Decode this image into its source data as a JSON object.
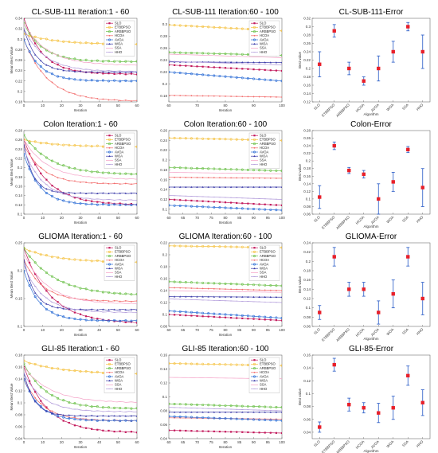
{
  "series_styles": [
    {
      "name": "SLO",
      "color": "#c2185b",
      "marker": "square"
    },
    {
      "name": "ETBBPSO",
      "color": "#f5c242",
      "marker": "circle"
    },
    {
      "name": "ARBBPSO",
      "color": "#6cc04a",
      "marker": "circle"
    },
    {
      "name": "HCOA",
      "color": "#f26d6d",
      "marker": "dot"
    },
    {
      "name": "AVOA",
      "color": "#2f6fd6",
      "marker": "circle"
    },
    {
      "name": "WOA",
      "color": "#3a3aa8",
      "marker": "triangle"
    },
    {
      "name": "SSA",
      "color": "#f4a0c6",
      "marker": "none"
    },
    {
      "name": "HHO",
      "color": "#b39ddb",
      "marker": "dash"
    }
  ],
  "chart_data": [
    {
      "type": "line",
      "title": "CL-SUB-111  Iteration:1 - 60",
      "xlabel": "Iteration",
      "ylabel": "Mean Best Value",
      "xlim": [
        0,
        60
      ],
      "ylim": [
        0.18,
        0.34
      ],
      "xticks": [
        0,
        10,
        20,
        30,
        40,
        50,
        60
      ],
      "yticks": [
        0.18,
        0.2,
        0.22,
        0.24,
        0.26,
        0.28,
        0.3,
        0.32,
        0.34
      ],
      "legend": "top-right",
      "series": [
        {
          "name": "SLO",
          "start": 0.34,
          "end": 0.233,
          "rate": 0.1
        },
        {
          "name": "ETBBPSO",
          "start": 0.31,
          "end": 0.29,
          "rate": 0.06
        },
        {
          "name": "ARBBPSO",
          "start": 0.33,
          "end": 0.257,
          "rate": 0.1
        },
        {
          "name": "HCOA",
          "start": 0.3,
          "end": 0.181,
          "rate": 0.08
        },
        {
          "name": "AVOA",
          "start": 0.3,
          "end": 0.22,
          "rate": 0.12
        },
        {
          "name": "WOA",
          "start": 0.32,
          "end": 0.237,
          "rate": 0.15
        },
        {
          "name": "SSA",
          "start": 0.33,
          "end": 0.25,
          "rate": 0.08
        },
        {
          "name": "HHO",
          "start": 0.32,
          "end": 0.238,
          "rate": 0.09
        }
      ]
    },
    {
      "type": "line",
      "title": "CL-SUB-111  Iteration:60 - 100",
      "xlabel": "Iteration",
      "ylabel": "",
      "xlim": [
        60,
        100
      ],
      "ylim": [
        0.17,
        0.31
      ],
      "xticks": [
        60,
        70,
        80,
        90,
        100
      ],
      "yticks": [
        0.18,
        0.2,
        0.22,
        0.24,
        0.26,
        0.28,
        0.3
      ],
      "legend": "top-right",
      "series": [
        {
          "name": "SLO",
          "start": 0.232,
          "end": 0.222
        },
        {
          "name": "ETBBPSO",
          "start": 0.299,
          "end": 0.289
        },
        {
          "name": "ARBBPSO",
          "start": 0.253,
          "end": 0.248
        },
        {
          "name": "HCOA",
          "start": 0.181,
          "end": 0.178
        },
        {
          "name": "AVOA",
          "start": 0.22,
          "end": 0.205
        },
        {
          "name": "WOA",
          "start": 0.237,
          "end": 0.236
        },
        {
          "name": "SSA",
          "start": 0.25,
          "end": 0.244
        },
        {
          "name": "HHO",
          "start": 0.238,
          "end": 0.232
        }
      ]
    },
    {
      "type": "errorbar",
      "title": "CL-SUB-111-Error",
      "xlabel": "Algorithm",
      "ylabel": "Best value",
      "ylim": [
        0.12,
        0.32
      ],
      "yticks": [
        0.12,
        0.14,
        0.16,
        0.18,
        0.2,
        0.22,
        0.24,
        0.26,
        0.28,
        0.3,
        0.32
      ],
      "categories": [
        "SLO",
        "ETBBPSO",
        "ARBBPSO",
        "HCOA",
        "AVOA",
        "WOA",
        "SSA",
        "HHO"
      ],
      "values": [
        0.21,
        0.29,
        0.2,
        0.17,
        0.2,
        0.24,
        0.3,
        0.24
      ],
      "errors": [
        0.03,
        0.015,
        0.015,
        0.01,
        0.03,
        0.025,
        0.01,
        0.04
      ]
    },
    {
      "type": "line",
      "title": "Colon  Iteration:1 - 60",
      "xlabel": "Iteration",
      "ylabel": "Mean Best Value",
      "xlim": [
        0,
        60
      ],
      "ylim": [
        0.1,
        0.28
      ],
      "xticks": [
        0,
        10,
        20,
        30,
        40,
        50,
        60
      ],
      "yticks": [
        0.1,
        0.12,
        0.14,
        0.16,
        0.18,
        0.2,
        0.22,
        0.24,
        0.26,
        0.28
      ],
      "legend": "top-right",
      "series": [
        {
          "name": "SLO",
          "start": 0.26,
          "end": 0.12,
          "rate": 0.08
        },
        {
          "name": "ETBBPSO",
          "start": 0.26,
          "end": 0.245,
          "rate": 0.06
        },
        {
          "name": "ARBBPSO",
          "start": 0.27,
          "end": 0.185,
          "rate": 0.07
        },
        {
          "name": "HCOA",
          "start": 0.25,
          "end": 0.165,
          "rate": 0.1
        },
        {
          "name": "AVOA",
          "start": 0.23,
          "end": 0.12,
          "rate": 0.12
        },
        {
          "name": "WOA",
          "start": 0.25,
          "end": 0.145,
          "rate": 0.2
        },
        {
          "name": "SSA",
          "start": 0.26,
          "end": 0.175,
          "rate": 0.08
        },
        {
          "name": "HHO",
          "start": 0.24,
          "end": 0.13,
          "rate": 0.1
        }
      ]
    },
    {
      "type": "line",
      "title": "Colon  Iteration:60 - 100",
      "xlabel": "Iteration",
      "ylabel": "",
      "xlim": [
        60,
        100
      ],
      "ylim": [
        0.09,
        0.26
      ],
      "xticks": [
        60,
        65,
        70,
        75,
        80,
        85,
        90,
        95,
        100
      ],
      "yticks": [
        0.1,
        0.12,
        0.14,
        0.16,
        0.18,
        0.2,
        0.22,
        0.24,
        0.26
      ],
      "legend": "top-right",
      "series": [
        {
          "name": "SLO",
          "start": 0.12,
          "end": 0.108
        },
        {
          "name": "ETBBPSO",
          "start": 0.245,
          "end": 0.24
        },
        {
          "name": "ARBBPSO",
          "start": 0.185,
          "end": 0.178
        },
        {
          "name": "HCOA",
          "start": 0.165,
          "end": 0.163
        },
        {
          "name": "AVOA",
          "start": 0.108,
          "end": 0.098
        },
        {
          "name": "WOA",
          "start": 0.145,
          "end": 0.145
        },
        {
          "name": "SSA",
          "start": 0.175,
          "end": 0.172
        },
        {
          "name": "HHO",
          "start": 0.128,
          "end": 0.12
        }
      ]
    },
    {
      "type": "errorbar",
      "title": "Colon-Error",
      "xlabel": "Algorithm",
      "ylabel": "Best value",
      "ylim": [
        0.06,
        0.28
      ],
      "yticks": [
        0.06,
        0.08,
        0.1,
        0.12,
        0.14,
        0.16,
        0.18,
        0.2,
        0.22,
        0.24,
        0.26,
        0.28
      ],
      "categories": [
        "SLO",
        "ETBBPSO",
        "ARBBPSO",
        "HCOA",
        "AVOA",
        "WOA",
        "SSA",
        "HHO"
      ],
      "values": [
        0.105,
        0.24,
        0.175,
        0.165,
        0.1,
        0.145,
        0.23,
        0.13
      ],
      "errors": [
        0.03,
        0.01,
        0.008,
        0.01,
        0.04,
        0.025,
        0.008,
        0.05
      ]
    },
    {
      "type": "line",
      "title": "GLIOMA  Iteration:1 - 60",
      "xlabel": "Iteration",
      "ylabel": "Mean Best Value",
      "xlim": [
        0,
        60
      ],
      "ylim": [
        0.1,
        0.25
      ],
      "xticks": [
        0,
        10,
        20,
        30,
        40,
        50,
        60
      ],
      "yticks": [
        0.1,
        0.15,
        0.2,
        0.25
      ],
      "legend": "top-right",
      "series": [
        {
          "name": "SLO",
          "start": 0.24,
          "end": 0.105,
          "rate": 0.07
        },
        {
          "name": "ETBBPSO",
          "start": 0.24,
          "end": 0.215,
          "rate": 0.06
        },
        {
          "name": "ARBBPSO",
          "start": 0.24,
          "end": 0.155,
          "rate": 0.06
        },
        {
          "name": "HCOA",
          "start": 0.22,
          "end": 0.145,
          "rate": 0.1
        },
        {
          "name": "AVOA",
          "start": 0.2,
          "end": 0.11,
          "rate": 0.12
        },
        {
          "name": "WOA",
          "start": 0.22,
          "end": 0.13,
          "rate": 0.18
        },
        {
          "name": "SSA",
          "start": 0.23,
          "end": 0.14,
          "rate": 0.08
        },
        {
          "name": "HHO",
          "start": 0.21,
          "end": 0.125,
          "rate": 0.1
        }
      ]
    },
    {
      "type": "line",
      "title": "GLIOMA  Iteration:60 - 100",
      "xlabel": "Iteration",
      "ylabel": "",
      "xlim": [
        60,
        100
      ],
      "ylim": [
        0.08,
        0.22
      ],
      "xticks": [
        60,
        65,
        70,
        75,
        80,
        85,
        90,
        95,
        100
      ],
      "yticks": [
        0.08,
        0.1,
        0.12,
        0.14,
        0.16,
        0.18,
        0.2,
        0.22
      ],
      "legend": "top-right",
      "series": [
        {
          "name": "SLO",
          "start": 0.1,
          "end": 0.09
        },
        {
          "name": "ETBBPSO",
          "start": 0.215,
          "end": 0.212
        },
        {
          "name": "ARBBPSO",
          "start": 0.155,
          "end": 0.148
        },
        {
          "name": "HCOA",
          "start": 0.145,
          "end": 0.14
        },
        {
          "name": "AVOA",
          "start": 0.106,
          "end": 0.094
        },
        {
          "name": "WOA",
          "start": 0.13,
          "end": 0.129
        },
        {
          "name": "SSA",
          "start": 0.14,
          "end": 0.137
        },
        {
          "name": "HHO",
          "start": 0.126,
          "end": 0.12
        }
      ]
    },
    {
      "type": "errorbar",
      "title": "GLIOMA-Error",
      "xlabel": "Algorithm",
      "ylabel": "Best value",
      "ylim": [
        0.06,
        0.24
      ],
      "yticks": [
        0.06,
        0.08,
        0.1,
        0.12,
        0.14,
        0.16,
        0.18,
        0.2,
        0.22,
        0.24
      ],
      "categories": [
        "SLO",
        "ETBBPSO",
        "ARBBPSO",
        "HCOA",
        "AVOA",
        "WOA",
        "SSA",
        "HHO"
      ],
      "values": [
        0.09,
        0.21,
        0.14,
        0.14,
        0.09,
        0.13,
        0.21,
        0.12
      ],
      "errors": [
        0.015,
        0.02,
        0.015,
        0.015,
        0.025,
        0.03,
        0.02,
        0.035
      ]
    },
    {
      "type": "line",
      "title": "GLI-85  Iteration:1 - 60",
      "xlabel": "Iteration",
      "ylabel": "Mean Best Value",
      "xlim": [
        0,
        60
      ],
      "ylim": [
        0.04,
        0.18
      ],
      "xticks": [
        0,
        10,
        20,
        30,
        40,
        50,
        60
      ],
      "yticks": [
        0.04,
        0.06,
        0.08,
        0.1,
        0.12,
        0.14,
        0.16,
        0.18
      ],
      "legend": "top-right",
      "series": [
        {
          "name": "SLO",
          "start": 0.16,
          "end": 0.05,
          "rate": 0.08
        },
        {
          "name": "ETBBPSO",
          "start": 0.17,
          "end": 0.148,
          "rate": 0.05
        },
        {
          "name": "ARBBPSO",
          "start": 0.165,
          "end": 0.09,
          "rate": 0.08
        },
        {
          "name": "HCOA",
          "start": 0.14,
          "end": 0.07,
          "rate": 0.1
        },
        {
          "name": "AVOA",
          "start": 0.14,
          "end": 0.07,
          "rate": 0.12
        },
        {
          "name": "WOA",
          "start": 0.15,
          "end": 0.078,
          "rate": 0.18
        },
        {
          "name": "SSA",
          "start": 0.16,
          "end": 0.1,
          "rate": 0.07
        },
        {
          "name": "HHO",
          "start": 0.15,
          "end": 0.085,
          "rate": 0.1
        }
      ]
    },
    {
      "type": "line",
      "title": "GLI-85  Iteration:60 - 100",
      "xlabel": "Iteration",
      "ylabel": "",
      "xlim": [
        60,
        100
      ],
      "ylim": [
        0.04,
        0.16
      ],
      "xticks": [
        60,
        65,
        70,
        75,
        80,
        85,
        90,
        95,
        100
      ],
      "yticks": [
        0.04,
        0.06,
        0.08,
        0.1,
        0.12,
        0.14,
        0.16
      ],
      "legend": "top-right",
      "series": [
        {
          "name": "SLO",
          "start": 0.052,
          "end": 0.048
        },
        {
          "name": "ETBBPSO",
          "start": 0.148,
          "end": 0.145
        },
        {
          "name": "ARBBPSO",
          "start": 0.09,
          "end": 0.085
        },
        {
          "name": "HCOA",
          "start": 0.07,
          "end": 0.068
        },
        {
          "name": "AVOA",
          "start": 0.072,
          "end": 0.066
        },
        {
          "name": "WOA",
          "start": 0.078,
          "end": 0.078
        },
        {
          "name": "SSA",
          "start": 0.128,
          "end": 0.126
        },
        {
          "name": "HHO",
          "start": 0.085,
          "end": 0.08
        }
      ]
    },
    {
      "type": "errorbar",
      "title": "GLI-85-Error",
      "xlabel": "Algorithm",
      "ylabel": "Best value",
      "ylim": [
        0.03,
        0.16
      ],
      "yticks": [
        0.04,
        0.06,
        0.08,
        0.1,
        0.12,
        0.14,
        0.16
      ],
      "categories": [
        "SLO",
        "ETBBPSO",
        "ARBBPSO",
        "HCOA",
        "AVOA",
        "WOA",
        "SSA",
        "HHO"
      ],
      "values": [
        0.048,
        0.145,
        0.083,
        0.078,
        0.07,
        0.078,
        0.128,
        0.086
      ],
      "errors": [
        0.008,
        0.01,
        0.01,
        0.008,
        0.015,
        0.018,
        0.015,
        0.02
      ]
    }
  ]
}
